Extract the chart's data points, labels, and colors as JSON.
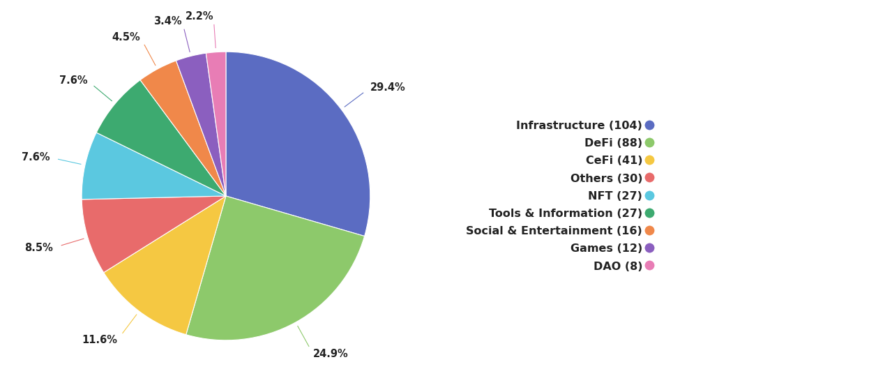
{
  "values": [
    29.4,
    24.9,
    11.6,
    8.5,
    7.6,
    7.6,
    4.5,
    3.4,
    2.2
  ],
  "colors": [
    "#5B6CC2",
    "#8DC96B",
    "#F5C842",
    "#E86B6B",
    "#5BC8E0",
    "#3DAA70",
    "#F0884A",
    "#8B5FBF",
    "#E87DB5"
  ],
  "pct_labels": [
    "29.4%",
    "24.9%",
    "11.6%",
    "8.5%",
    "7.6%",
    "7.6%",
    "4.5%",
    "3.4%",
    "2.2%"
  ],
  "legend_labels": [
    "Infrastructure (104)",
    "DeFi (88)",
    "CeFi (41)",
    "Others (30)",
    "NFT (27)",
    "Tools & Information (27)",
    "Social & Entertainment (16)",
    "Games (12)",
    "DAO (8)"
  ],
  "background_color": "#FFFFFF",
  "text_color": "#222222",
  "label_fontsize": 10.5,
  "legend_fontsize": 11.5
}
